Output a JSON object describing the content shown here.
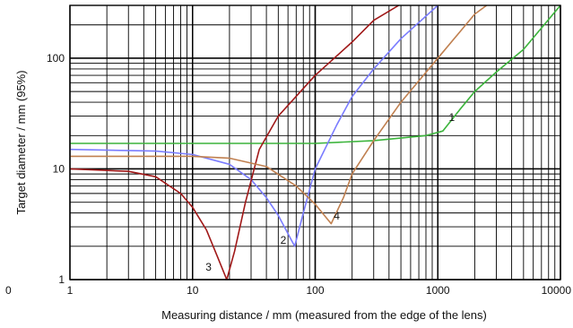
{
  "chart_data": {
    "type": "line",
    "title": "",
    "xlabel": "Measuring distance / mm (measured from the edge of the lens)",
    "ylabel": "Target diameter / mm (95%)",
    "xscale": "log",
    "yscale": "log",
    "xlim": [
      1,
      10000
    ],
    "ylim": [
      1,
      300
    ],
    "grid": true,
    "x_tick_labels": [
      {
        "value": 1,
        "label": "1"
      },
      {
        "value": 10,
        "label": "10"
      },
      {
        "value": 100,
        "label": "100"
      },
      {
        "value": 1000,
        "label": "1000"
      },
      {
        "value": 10000,
        "label": "10000"
      }
    ],
    "x_tick_extra": {
      "label": "0"
    },
    "y_tick_labels": [
      {
        "value": 1,
        "label": "1"
      },
      {
        "value": 10,
        "label": "10"
      },
      {
        "value": 100,
        "label": "100"
      }
    ],
    "series": [
      {
        "name": "1",
        "color": "#3cb43c",
        "points": [
          [
            1,
            17
          ],
          [
            10,
            17
          ],
          [
            100,
            17
          ],
          [
            300,
            18
          ],
          [
            800,
            20
          ],
          [
            1100,
            22
          ],
          [
            1500,
            34
          ],
          [
            2000,
            50
          ],
          [
            3000,
            75
          ],
          [
            5000,
            120
          ],
          [
            10000,
            300
          ]
        ],
        "label_at": [
          1300,
          27
        ]
      },
      {
        "name": "2",
        "color": "#7a7cff",
        "points": [
          [
            1,
            15
          ],
          [
            5,
            14.5
          ],
          [
            10,
            13.5
          ],
          [
            20,
            11
          ],
          [
            30,
            8
          ],
          [
            40,
            5.5
          ],
          [
            50,
            3.8
          ],
          [
            60,
            2.6
          ],
          [
            68,
            2
          ],
          [
            80,
            4
          ],
          [
            100,
            10
          ],
          [
            150,
            25
          ],
          [
            200,
            45
          ],
          [
            300,
            80
          ],
          [
            500,
            150
          ],
          [
            1000,
            300
          ]
        ],
        "label_at": [
          55,
          2.1
        ]
      },
      {
        "name": "3",
        "color": "#a01818",
        "points": [
          [
            1,
            10
          ],
          [
            3,
            9.5
          ],
          [
            5,
            8.5
          ],
          [
            8,
            6
          ],
          [
            10,
            4.5
          ],
          [
            13,
            2.8
          ],
          [
            16,
            1.6
          ],
          [
            19,
            1
          ],
          [
            22,
            1.8
          ],
          [
            27,
            5
          ],
          [
            35,
            15
          ],
          [
            50,
            30
          ],
          [
            100,
            70
          ],
          [
            200,
            140
          ],
          [
            300,
            220
          ],
          [
            480,
            300
          ]
        ],
        "label_at": [
          13.5,
          1.2
        ]
      },
      {
        "name": "4",
        "color": "#c08050",
        "points": [
          [
            1,
            13
          ],
          [
            10,
            13
          ],
          [
            20,
            12.5
          ],
          [
            40,
            10.5
          ],
          [
            70,
            7
          ],
          [
            100,
            4.8
          ],
          [
            135,
            3.2
          ],
          [
            170,
            5.5
          ],
          [
            200,
            9
          ],
          [
            300,
            18
          ],
          [
            500,
            40
          ],
          [
            1000,
            100
          ],
          [
            2000,
            250
          ],
          [
            2500,
            300
          ]
        ],
        "label_at": [
          150,
          3.5
        ]
      }
    ]
  }
}
